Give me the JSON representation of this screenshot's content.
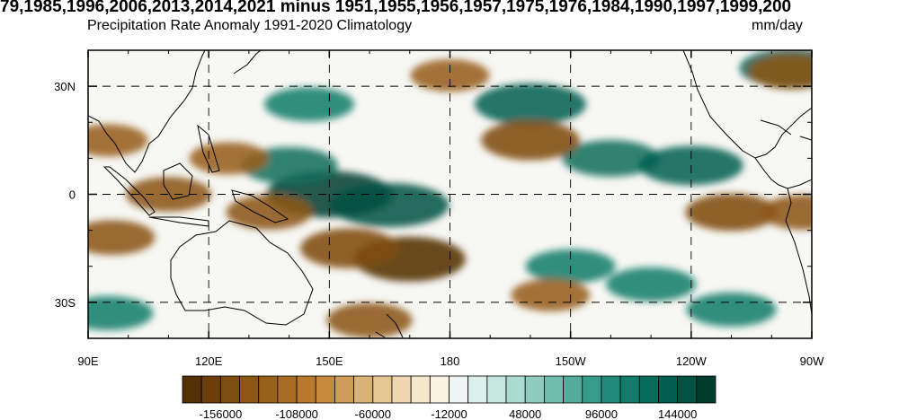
{
  "title": "79,1985,1996,2006,2013,2014,2021 minus 1951,1955,1956,1957,1975,1976,1984,1990,1997,1999,200",
  "subtitle": "Precipitation Rate Anomaly 1991-2020 Climatology",
  "units": "mm/day",
  "map": {
    "lon_range": [
      90,
      270
    ],
    "lat_range": [
      -40,
      40
    ],
    "lon_ticks": [
      {
        "value": 90,
        "label": "90E"
      },
      {
        "value": 120,
        "label": "120E"
      },
      {
        "value": 150,
        "label": "150E"
      },
      {
        "value": 180,
        "label": "180"
      },
      {
        "value": 210,
        "label": "150W"
      },
      {
        "value": 240,
        "label": "120W"
      },
      {
        "value": 270,
        "label": "90W"
      }
    ],
    "lat_ticks": [
      {
        "value": 30,
        "label": "30N"
      },
      {
        "value": 0,
        "label": "0"
      },
      {
        "value": -30,
        "label": "30S"
      }
    ],
    "grid": true
  },
  "colorbar": {
    "colors_dry": [
      "#543005",
      "#6b3e0a",
      "#7f4c10",
      "#8c5616",
      "#99601c",
      "#a86c24",
      "#b8792f",
      "#c58a3e",
      "#d09d58",
      "#dbb275",
      "#e5c693",
      "#eed8b0",
      "#f5e7cc",
      "#faf2e3"
    ],
    "colors_wet": [
      "#eef7f5",
      "#dcefeb",
      "#c5e6df",
      "#abdad0",
      "#8fcbbf",
      "#72bcae",
      "#54ab9c",
      "#389a8a",
      "#238a79",
      "#127b69",
      "#086c5b",
      "#035e4f",
      "#015243",
      "#003c30"
    ],
    "tick_labels": [
      "-156000",
      "-108000",
      "-60000",
      "-12000",
      "48000",
      "96000",
      "144000"
    ]
  },
  "anomaly_field": {
    "wet": [
      {
        "lon": 150,
        "lat": 0,
        "strength": 1.0
      },
      {
        "lon": 165,
        "lat": -3,
        "strength": 0.9
      },
      {
        "lon": 140,
        "lat": 8,
        "strength": 0.6
      },
      {
        "lon": 200,
        "lat": 25,
        "strength": 0.8
      },
      {
        "lon": 220,
        "lat": 10,
        "strength": 0.6
      },
      {
        "lon": 240,
        "lat": 8,
        "strength": 0.7
      },
      {
        "lon": 265,
        "lat": 35,
        "strength": 0.7
      },
      {
        "lon": 145,
        "lat": 25,
        "strength": 0.5
      },
      {
        "lon": 210,
        "lat": -20,
        "strength": 0.5
      },
      {
        "lon": 230,
        "lat": -25,
        "strength": 0.5
      },
      {
        "lon": 250,
        "lat": -32,
        "strength": 0.5
      },
      {
        "lon": 95,
        "lat": -33,
        "strength": 0.5
      }
    ],
    "dry": [
      {
        "lon": 170,
        "lat": -18,
        "strength": 1.0
      },
      {
        "lon": 155,
        "lat": -15,
        "strength": 0.8
      },
      {
        "lon": 200,
        "lat": 15,
        "strength": 0.8
      },
      {
        "lon": 135,
        "lat": -5,
        "strength": 0.6
      },
      {
        "lon": 110,
        "lat": 0,
        "strength": 0.6
      },
      {
        "lon": 125,
        "lat": 10,
        "strength": 0.5
      },
      {
        "lon": 95,
        "lat": 15,
        "strength": 0.5
      },
      {
        "lon": 250,
        "lat": -5,
        "strength": 0.7
      },
      {
        "lon": 265,
        "lat": 34,
        "strength": 0.6
      },
      {
        "lon": 180,
        "lat": 33,
        "strength": 0.5
      },
      {
        "lon": 160,
        "lat": -35,
        "strength": 0.6
      },
      {
        "lon": 205,
        "lat": -28,
        "strength": 0.5
      },
      {
        "lon": 268,
        "lat": -5,
        "strength": 0.6
      },
      {
        "lon": 96,
        "lat": -12,
        "strength": 0.6
      }
    ]
  }
}
